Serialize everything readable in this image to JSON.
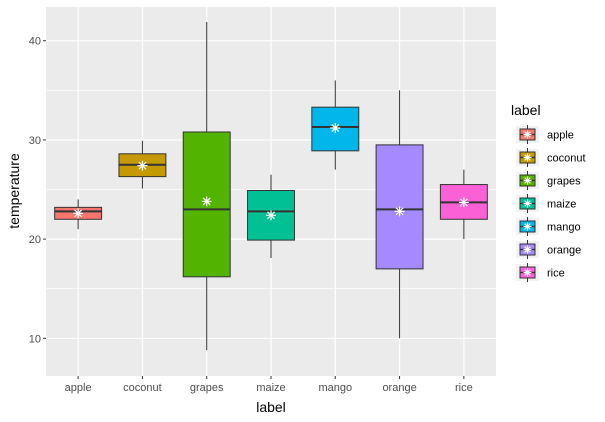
{
  "chart_data": {
    "type": "boxplot",
    "xlabel": "label",
    "ylabel": "temperature",
    "ylim": [
      6.2,
      43.4
    ],
    "yticks": [
      10,
      20,
      30,
      40
    ],
    "grid": true,
    "legend": {
      "title": "label",
      "placement": "right"
    },
    "mean_marker": "asterisk",
    "categories": [
      "apple",
      "coconut",
      "grapes",
      "maize",
      "mango",
      "orange",
      "rice"
    ],
    "colors": [
      "#F8766D",
      "#C49A00",
      "#53B400",
      "#00C094",
      "#00B6EB",
      "#A58AFF",
      "#FB61D7"
    ],
    "series": [
      {
        "name": "apple",
        "whisker_low": 21.0,
        "q1": 22.0,
        "median": 22.8,
        "q3": 23.2,
        "whisker_high": 24.0,
        "mean": 22.6
      },
      {
        "name": "coconut",
        "whisker_low": 25.1,
        "q1": 26.3,
        "median": 27.5,
        "q3": 28.6,
        "whisker_high": 29.9,
        "mean": 27.4
      },
      {
        "name": "grapes",
        "whisker_low": 8.8,
        "q1": 16.2,
        "median": 23.0,
        "q3": 30.8,
        "whisker_high": 41.9,
        "mean": 23.8
      },
      {
        "name": "maize",
        "whisker_low": 18.1,
        "q1": 19.9,
        "median": 22.8,
        "q3": 24.9,
        "whisker_high": 26.5,
        "mean": 22.4
      },
      {
        "name": "mango",
        "whisker_low": 27.0,
        "q1": 28.9,
        "median": 31.3,
        "q3": 33.3,
        "whisker_high": 36.0,
        "mean": 31.2
      },
      {
        "name": "orange",
        "whisker_low": 10.0,
        "q1": 17.0,
        "median": 23.0,
        "q3": 29.5,
        "whisker_high": 35.0,
        "mean": 22.8
      },
      {
        "name": "rice",
        "whisker_low": 20.0,
        "q1": 22.0,
        "median": 23.7,
        "q3": 25.5,
        "whisker_high": 27.0,
        "mean": 23.7
      }
    ]
  }
}
